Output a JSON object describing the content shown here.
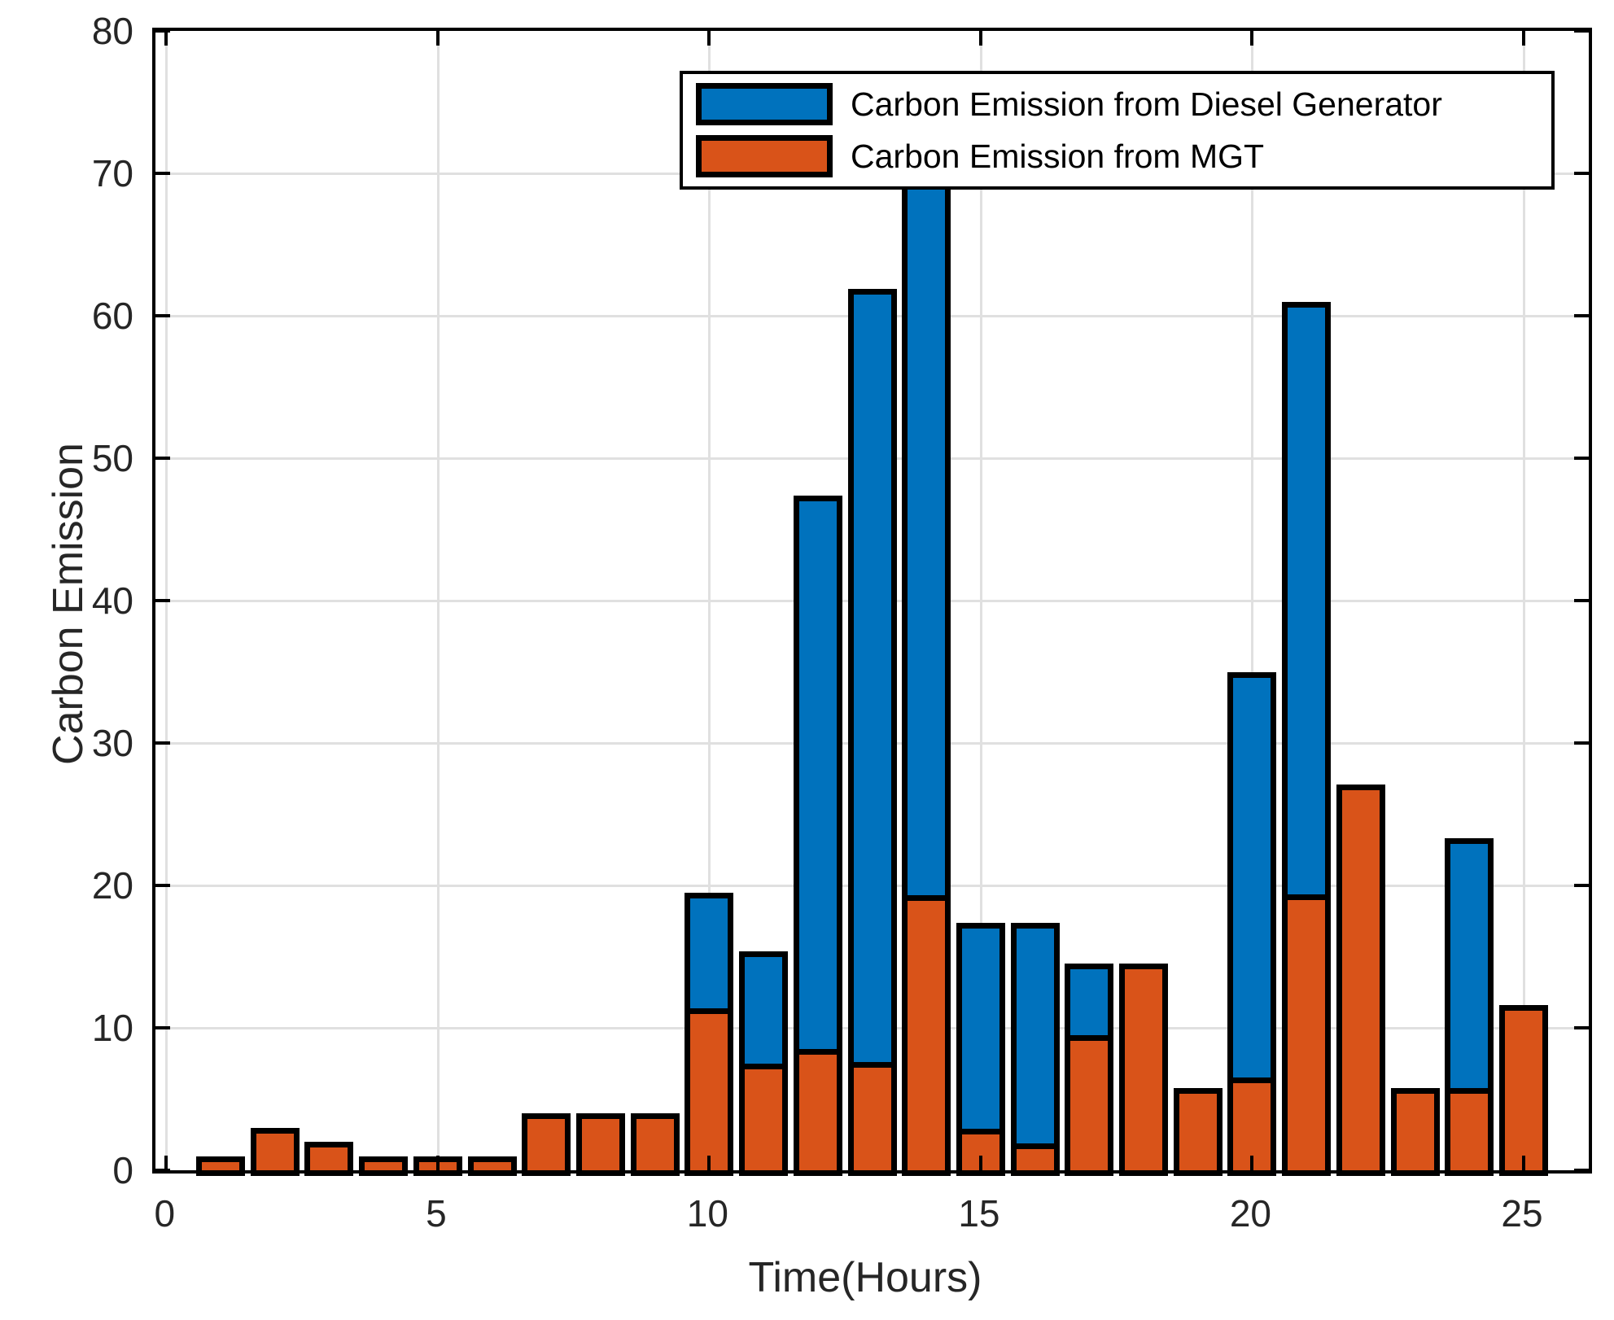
{
  "figure": {
    "title": "",
    "xlabel": "Time(Hours)",
    "ylabel": "Carbon Emission"
  },
  "chart_data": {
    "type": "bar",
    "stacked": true,
    "title": "",
    "xlabel": "Time(Hours)",
    "ylabel": "Carbon Emission",
    "x": [
      1,
      2,
      3,
      4,
      5,
      6,
      7,
      8,
      9,
      10,
      11,
      12,
      13,
      14,
      15,
      16,
      17,
      18,
      19,
      20,
      21,
      22,
      23,
      24,
      25
    ],
    "series": [
      {
        "name": "Carbon Emission from Diesel Generator",
        "color": "#0072BD",
        "stack_order": "top",
        "values": [
          0,
          0,
          0,
          0,
          0,
          0,
          0,
          0,
          0,
          8.1,
          7.9,
          38.9,
          54.3,
          50.2,
          14.5,
          15.5,
          5.0,
          0,
          0,
          28.5,
          41.6,
          0,
          0,
          17.5,
          0
        ]
      },
      {
        "name": "Carbon Emission from MGT",
        "color": "#D95319",
        "stack_order": "bottom",
        "values": [
          1.0,
          3.0,
          2.0,
          1.0,
          1.0,
          1.0,
          4.0,
          4.0,
          4.0,
          11.4,
          7.5,
          8.5,
          7.6,
          19.3,
          2.9,
          1.9,
          9.5,
          14.5,
          5.8,
          6.5,
          19.4,
          27.1,
          5.8,
          5.8,
          11.6
        ]
      }
    ],
    "stacked_totals": [
      1.0,
      3.0,
      2.0,
      1.0,
      1.0,
      1.0,
      4.0,
      4.0,
      4.0,
      19.5,
      15.4,
      47.4,
      61.9,
      69.5,
      17.4,
      17.4,
      14.5,
      14.5,
      5.8,
      35.0,
      61.0,
      27.1,
      5.8,
      23.3,
      11.6
    ],
    "xlim": [
      -0.2,
      26.2
    ],
    "ylim": [
      0,
      80
    ],
    "x_ticks": [
      0,
      5,
      10,
      15,
      20,
      25
    ],
    "y_ticks": [
      0,
      10,
      20,
      30,
      40,
      50,
      60,
      70,
      80
    ],
    "x_tick_labels": [
      "0",
      "5",
      "10",
      "15",
      "20",
      "25"
    ],
    "y_tick_labels": [
      "0",
      "10",
      "20",
      "30",
      "40",
      "50",
      "60",
      "70",
      "80"
    ],
    "grid": true,
    "grid_color": "#e0e0e0",
    "bar_edge_color": "#000000",
    "legend_position": "top-right-inside",
    "legend_entries": [
      "Carbon Emission from Diesel Generator",
      "Carbon Emission from MGT"
    ]
  }
}
